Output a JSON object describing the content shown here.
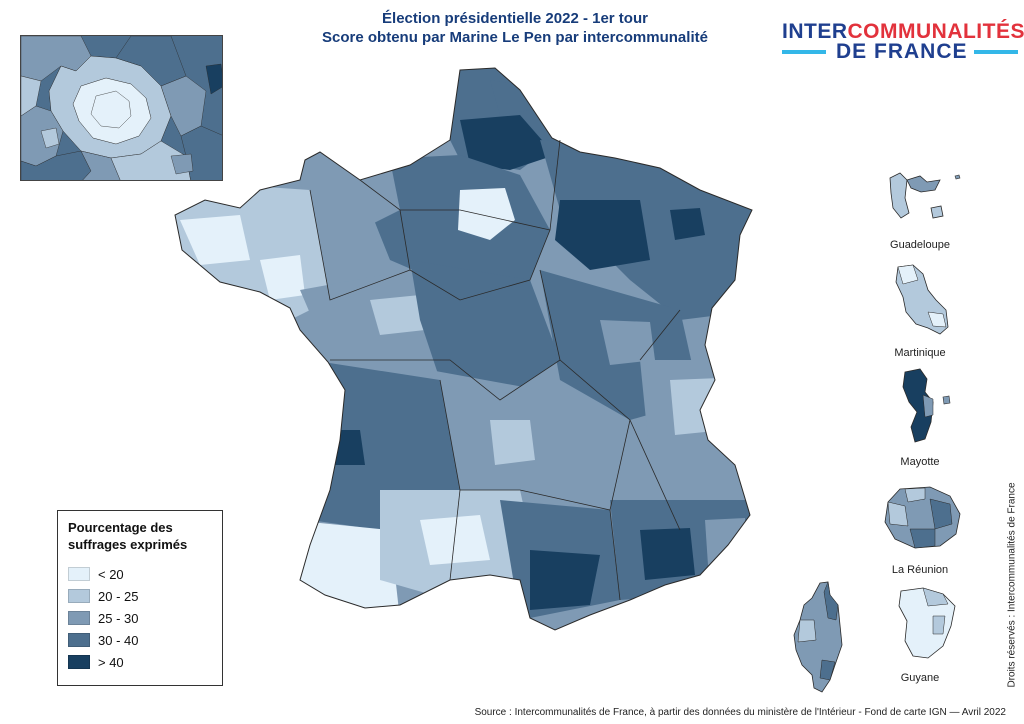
{
  "title": {
    "line1": "Élection présidentielle 2022 - 1er tour",
    "line2": "Score obtenu par Marine Le Pen par intercommunalité"
  },
  "logo": {
    "part1": "INTER",
    "part2": "COMMUNALITÉS",
    "line2": "DE FRANCE"
  },
  "legend": {
    "title_line1": "Pourcentage des",
    "title_line2": "suffrages exprimés",
    "classes": [
      {
        "label": "< 20",
        "color": "#e4f1fa"
      },
      {
        "label": "20 - 25",
        "color": "#b3c9dc"
      },
      {
        "label": "25 - 30",
        "color": "#7f9ab4"
      },
      {
        "label": "30 - 40",
        "color": "#4d6f8e"
      },
      {
        "label": "> 40",
        "color": "#183f60"
      }
    ]
  },
  "territories": {
    "guadeloupe": "Guadeloupe",
    "martinique": "Martinique",
    "mayotte": "Mayotte",
    "reunion": "La Réunion",
    "guyane": "Guyane"
  },
  "rights": "Droits réservés : Intercommunalités de France",
  "source": "Source : Intercommunalités de France, à partir des données du ministère de l'Intérieur - Fond de carte IGN  — Avril 2022",
  "colors": {
    "title": "#173c7a",
    "logo_blue": "#1f3f8f",
    "logo_red": "#e2323c",
    "logo_bar": "#33b7e8",
    "boundary": "#2a2a2a"
  }
}
